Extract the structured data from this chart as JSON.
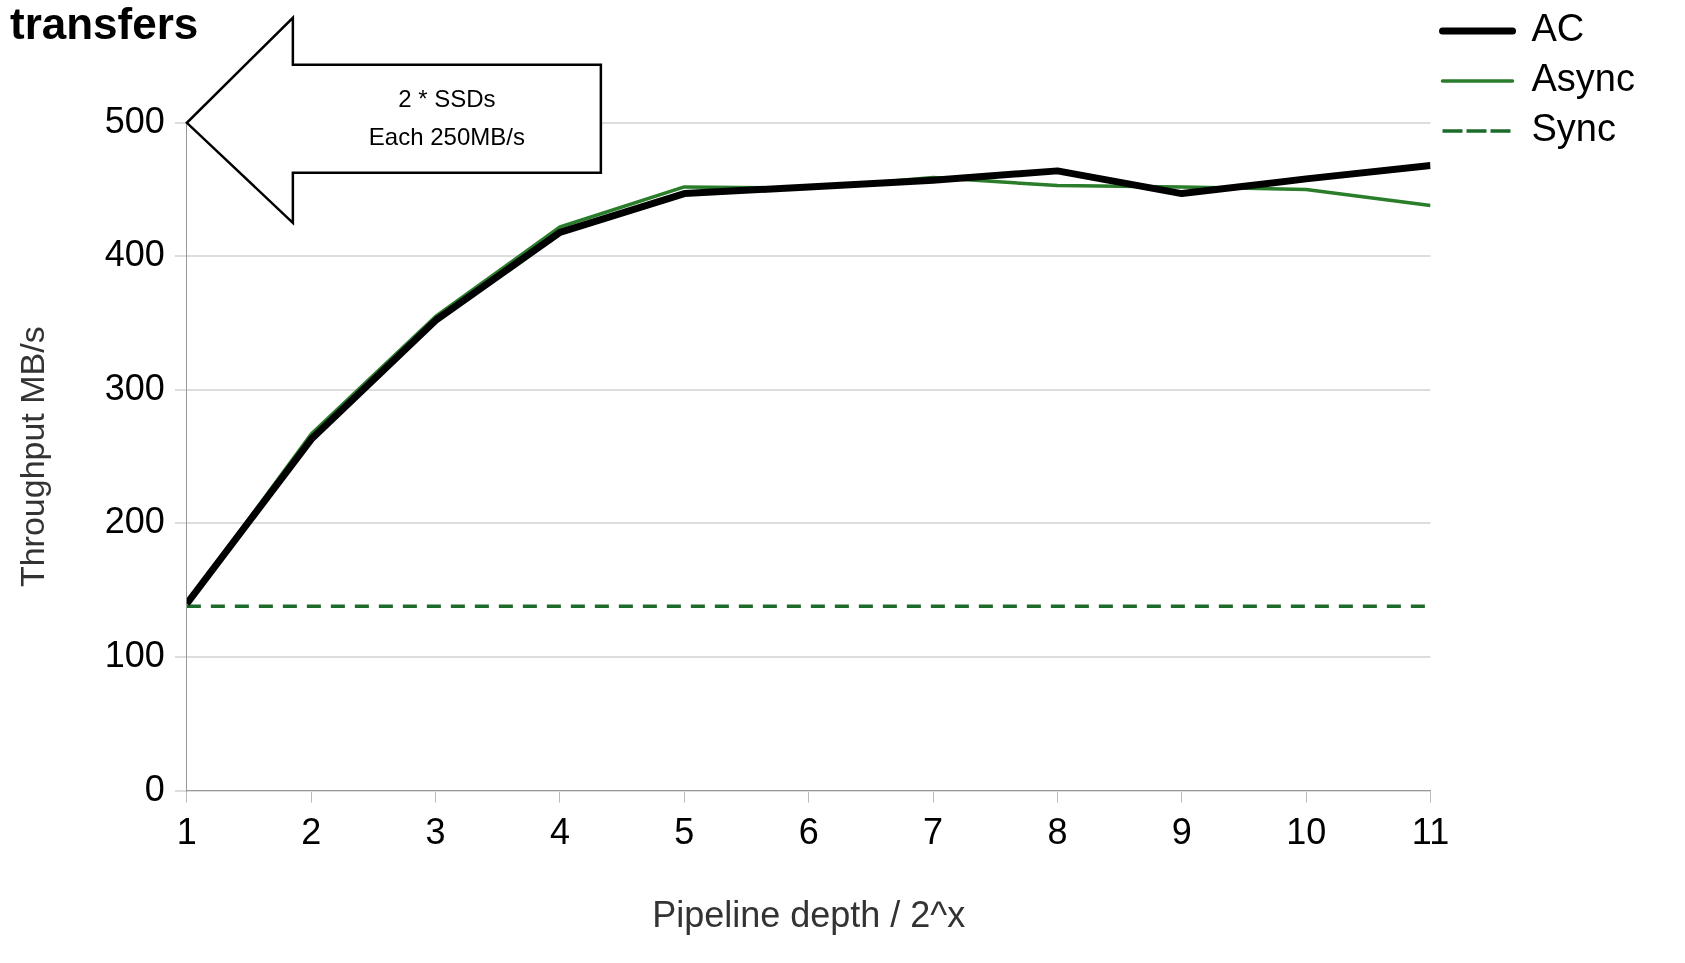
{
  "chart_data": {
    "type": "line",
    "title": "transfers",
    "xlabel": "Pipeline depth / 2^x",
    "ylabel": "Throughput MB/s",
    "x": [
      1,
      2,
      3,
      4,
      5,
      6,
      7,
      8,
      9,
      10,
      11
    ],
    "series": [
      {
        "name": "AC",
        "color": "#000000",
        "values": [
          140,
          263,
          352,
          418,
          447,
          452,
          457,
          464,
          447,
          458,
          468
        ]
      },
      {
        "name": "Async",
        "color": "#2a7d2a",
        "values": [
          140,
          267,
          355,
          422,
          452,
          451,
          459,
          453,
          452,
          450,
          438
        ]
      },
      {
        "name": "Sync",
        "color": "#1b6b2b",
        "line_style": "dashed",
        "values": [
          138,
          138,
          138,
          138,
          138,
          138,
          138,
          138,
          138,
          138,
          138
        ]
      }
    ],
    "xlim": [
      1,
      11
    ],
    "xticks": [
      1,
      2,
      3,
      4,
      5,
      6,
      7,
      8,
      9,
      10,
      11
    ],
    "ylim": [
      0,
      500
    ],
    "yticks": [
      0,
      100,
      200,
      300,
      400,
      500
    ],
    "grid": "y",
    "legend": "top right",
    "marker": "none",
    "annotations": [
      "2 * SSDs",
      "Each 250MB/s"
    ]
  }
}
